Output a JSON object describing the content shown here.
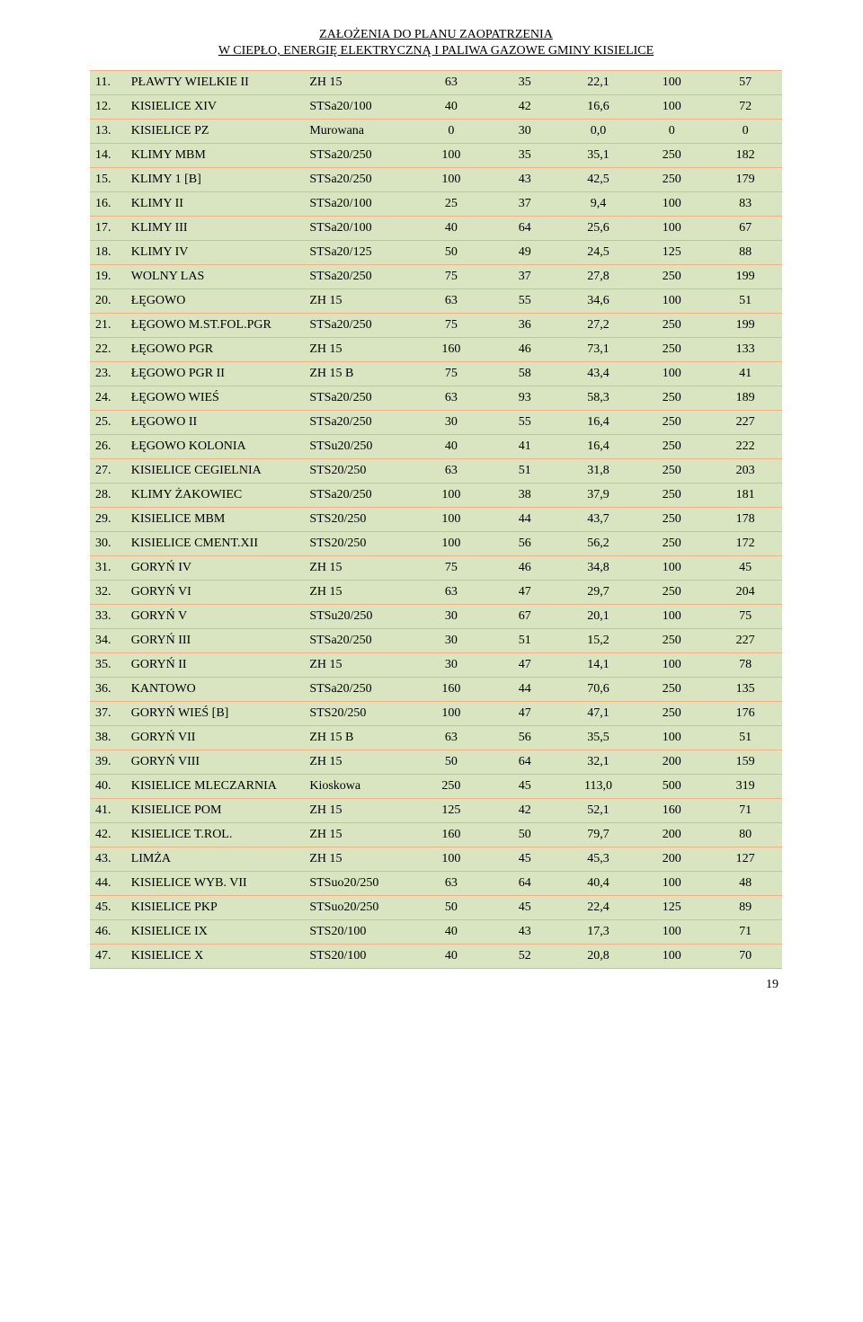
{
  "header": {
    "line1": "ZAŁOŻENIA DO PLANU ZAOPATRZENIA",
    "line2": "W CIEPŁO, ENERGIĘ ELEKTRYCZNĄ I PALIWA GAZOWE GMINY KISIELICE"
  },
  "page_number": "19",
  "styling": {
    "row_bg": "#d8e5c0",
    "border_color": "#f4b084",
    "font_family": "Times New Roman",
    "font_size_pt": 11,
    "header_font_size_pt": 11,
    "text_color": "#000000",
    "page_bg": "#ffffff"
  },
  "table": {
    "columns": [
      "no",
      "name",
      "type",
      "v1",
      "v2",
      "v3",
      "v4",
      "v5"
    ],
    "rows": [
      {
        "no": "11.",
        "name": "PŁAWTY WIELKIE II",
        "type": "ZH 15",
        "v1": "63",
        "v2": "35",
        "v3": "22,1",
        "v4": "100",
        "v5": "57"
      },
      {
        "no": "12.",
        "name": "KISIELICE XIV",
        "type": "STSa20/100",
        "v1": "40",
        "v2": "42",
        "v3": "16,6",
        "v4": "100",
        "v5": "72"
      },
      {
        "no": "13.",
        "name": "KISIELICE PZ",
        "type": "Murowana",
        "v1": "0",
        "v2": "30",
        "v3": "0,0",
        "v4": "0",
        "v5": "0"
      },
      {
        "no": "14.",
        "name": "KLIMY MBM",
        "type": "STSa20/250",
        "v1": "100",
        "v2": "35",
        "v3": "35,1",
        "v4": "250",
        "v5": "182"
      },
      {
        "no": "15.",
        "name": "KLIMY 1 [B]",
        "type": "STSa20/250",
        "v1": "100",
        "v2": "43",
        "v3": "42,5",
        "v4": "250",
        "v5": "179"
      },
      {
        "no": "16.",
        "name": "KLIMY II",
        "type": "STSa20/100",
        "v1": "25",
        "v2": "37",
        "v3": "9,4",
        "v4": "100",
        "v5": "83"
      },
      {
        "no": "17.",
        "name": "KLIMY III",
        "type": "STSa20/100",
        "v1": "40",
        "v2": "64",
        "v3": "25,6",
        "v4": "100",
        "v5": "67"
      },
      {
        "no": "18.",
        "name": "KLIMY IV",
        "type": "STSa20/125",
        "v1": "50",
        "v2": "49",
        "v3": "24,5",
        "v4": "125",
        "v5": "88"
      },
      {
        "no": "19.",
        "name": "WOLNY LAS",
        "type": "STSa20/250",
        "v1": "75",
        "v2": "37",
        "v3": "27,8",
        "v4": "250",
        "v5": "199"
      },
      {
        "no": "20.",
        "name": "ŁĘGOWO",
        "type": "ZH 15",
        "v1": "63",
        "v2": "55",
        "v3": "34,6",
        "v4": "100",
        "v5": "51"
      },
      {
        "no": "21.",
        "name": "ŁĘGOWO M.ST.FOL.PGR",
        "type": "STSa20/250",
        "v1": "75",
        "v2": "36",
        "v3": "27,2",
        "v4": "250",
        "v5": "199"
      },
      {
        "no": "22.",
        "name": "ŁĘGOWO PGR",
        "type": "ZH 15",
        "v1": "160",
        "v2": "46",
        "v3": "73,1",
        "v4": "250",
        "v5": "133"
      },
      {
        "no": "23.",
        "name": "ŁĘGOWO PGR II",
        "type": "ZH 15 B",
        "v1": "75",
        "v2": "58",
        "v3": "43,4",
        "v4": "100",
        "v5": "41"
      },
      {
        "no": "24.",
        "name": "ŁĘGOWO WIEŚ",
        "type": "STSa20/250",
        "v1": "63",
        "v2": "93",
        "v3": "58,3",
        "v4": "250",
        "v5": "189"
      },
      {
        "no": "25.",
        "name": "ŁĘGOWO II",
        "type": "STSa20/250",
        "v1": "30",
        "v2": "55",
        "v3": "16,4",
        "v4": "250",
        "v5": "227"
      },
      {
        "no": "26.",
        "name": "ŁĘGOWO KOLONIA",
        "type": "STSu20/250",
        "v1": "40",
        "v2": "41",
        "v3": "16,4",
        "v4": "250",
        "v5": "222"
      },
      {
        "no": "27.",
        "name": "KISIELICE CEGIELNIA",
        "type": "STS20/250",
        "v1": "63",
        "v2": "51",
        "v3": "31,8",
        "v4": "250",
        "v5": "203"
      },
      {
        "no": "28.",
        "name": "KLIMY ŻAKOWIEC",
        "type": "STSa20/250",
        "v1": "100",
        "v2": "38",
        "v3": "37,9",
        "v4": "250",
        "v5": "181"
      },
      {
        "no": "29.",
        "name": "KISIELICE MBM",
        "type": "STS20/250",
        "v1": "100",
        "v2": "44",
        "v3": "43,7",
        "v4": "250",
        "v5": "178"
      },
      {
        "no": "30.",
        "name": "KISIELICE CMENT.XII",
        "type": "STS20/250",
        "v1": "100",
        "v2": "56",
        "v3": "56,2",
        "v4": "250",
        "v5": "172"
      },
      {
        "no": "31.",
        "name": "GORYŃ IV",
        "type": "ZH 15",
        "v1": "75",
        "v2": "46",
        "v3": "34,8",
        "v4": "100",
        "v5": "45"
      },
      {
        "no": "32.",
        "name": "GORYŃ VI",
        "type": "ZH 15",
        "v1": "63",
        "v2": "47",
        "v3": "29,7",
        "v4": "250",
        "v5": "204"
      },
      {
        "no": "33.",
        "name": "GORYŃ V",
        "type": "STSu20/250",
        "v1": "30",
        "v2": "67",
        "v3": "20,1",
        "v4": "100",
        "v5": "75"
      },
      {
        "no": "34.",
        "name": "GORYŃ III",
        "type": "STSa20/250",
        "v1": "30",
        "v2": "51",
        "v3": "15,2",
        "v4": "250",
        "v5": "227"
      },
      {
        "no": "35.",
        "name": "GORYŃ II",
        "type": "ZH 15",
        "v1": "30",
        "v2": "47",
        "v3": "14,1",
        "v4": "100",
        "v5": "78"
      },
      {
        "no": "36.",
        "name": "KANTOWO",
        "type": "STSa20/250",
        "v1": "160",
        "v2": "44",
        "v3": "70,6",
        "v4": "250",
        "v5": "135"
      },
      {
        "no": "37.",
        "name": "GORYŃ WIEŚ [B]",
        "type": "STS20/250",
        "v1": "100",
        "v2": "47",
        "v3": "47,1",
        "v4": "250",
        "v5": "176"
      },
      {
        "no": "38.",
        "name": "GORYŃ VII",
        "type": "ZH 15 B",
        "v1": "63",
        "v2": "56",
        "v3": "35,5",
        "v4": "100",
        "v5": "51"
      },
      {
        "no": "39.",
        "name": "GORYŃ VIII",
        "type": "ZH 15",
        "v1": "50",
        "v2": "64",
        "v3": "32,1",
        "v4": "200",
        "v5": "159"
      },
      {
        "no": "40.",
        "name": "KISIELICE MLECZARNIA",
        "type": "Kioskowa",
        "v1": "250",
        "v2": "45",
        "v3": "113,0",
        "v4": "500",
        "v5": "319"
      },
      {
        "no": "41.",
        "name": "KISIELICE POM",
        "type": "ZH 15",
        "v1": "125",
        "v2": "42",
        "v3": "52,1",
        "v4": "160",
        "v5": "71"
      },
      {
        "no": "42.",
        "name": "KISIELICE T.ROL.",
        "type": "ZH 15",
        "v1": "160",
        "v2": "50",
        "v3": "79,7",
        "v4": "200",
        "v5": "80"
      },
      {
        "no": "43.",
        "name": "LIMŻA",
        "type": "ZH 15",
        "v1": "100",
        "v2": "45",
        "v3": "45,3",
        "v4": "200",
        "v5": "127"
      },
      {
        "no": "44.",
        "name": "KISIELICE WYB. VII",
        "type": "STSuo20/250",
        "v1": "63",
        "v2": "64",
        "v3": "40,4",
        "v4": "100",
        "v5": "48"
      },
      {
        "no": "45.",
        "name": "KISIELICE PKP",
        "type": "STSuo20/250",
        "v1": "50",
        "v2": "45",
        "v3": "22,4",
        "v4": "125",
        "v5": "89"
      },
      {
        "no": "46.",
        "name": "KISIELICE IX",
        "type": "STS20/100",
        "v1": "40",
        "v2": "43",
        "v3": "17,3",
        "v4": "100",
        "v5": "71"
      },
      {
        "no": "47.",
        "name": "KISIELICE X",
        "type": "STS20/100",
        "v1": "40",
        "v2": "52",
        "v3": "20,8",
        "v4": "100",
        "v5": "70"
      }
    ]
  }
}
